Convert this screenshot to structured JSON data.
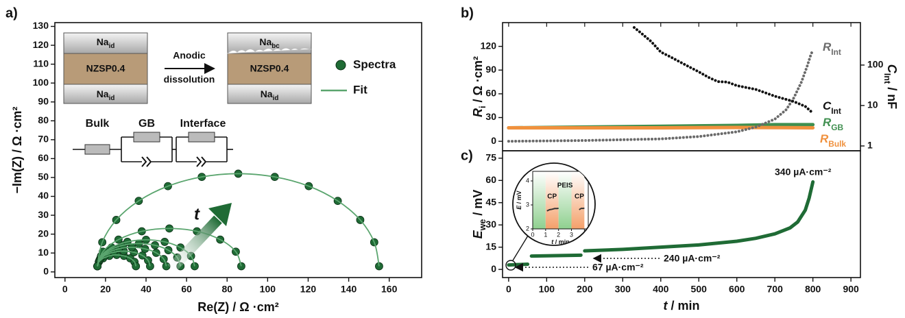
{
  "chart_data": [
    {
      "type": "scatter",
      "panel": "a)",
      "xlabel": "Re(Z) / Ω ·cm²",
      "ylabel": "−Im(Z) / Ω ·cm²",
      "xlim": [
        -5,
        176
      ],
      "ylim": [
        -3,
        132
      ],
      "xticks": [
        0,
        20,
        40,
        60,
        80,
        100,
        120,
        140,
        160
      ],
      "yticks": [
        0,
        10,
        20,
        30,
        40,
        50,
        60,
        70,
        80,
        90,
        100,
        110,
        120,
        130
      ],
      "series": [
        {
          "name": "Spectra",
          "color": "#1f6b35",
          "arcs": [
            {
              "x": [
                16,
                16.7,
                18.8,
                21.9,
                25.5,
                29.1,
                32.2,
                34.3,
                35
              ],
              "y": [
                3,
                5.3,
                7.2,
                8.5,
                9,
                8.5,
                7.2,
                5.3,
                3
              ]
            },
            {
              "x": [
                16,
                17.0,
                19.8,
                24.0,
                29,
                34.0,
                38.2,
                41.0,
                42
              ],
              "y": [
                3,
                6.1,
                8.7,
                10.4,
                11,
                10.4,
                8.7,
                6.1,
                3
              ]
            },
            {
              "x": [
                16,
                17.3,
                21.0,
                26.5,
                33,
                39.5,
                45.0,
                48.7,
                50
              ],
              "y": [
                3,
                6.8,
                10.1,
                12.2,
                13,
                12.2,
                10.1,
                6.8,
                3
              ]
            },
            {
              "x": [
                16,
                17.6,
                22.0,
                28.6,
                36.5,
                44.4,
                51.0,
                55.4,
                57
              ],
              "y": [
                3,
                7.6,
                11.5,
                14.1,
                15,
                14.1,
                11.5,
                7.6,
                3
              ]
            },
            {
              "x": [
                16,
                17.8,
                23.0,
                30.8,
                40,
                49.2,
                57.0,
                62.2,
                64
              ],
              "y": [
                3,
                8.4,
                12.9,
                15.9,
                17,
                15.9,
                12.9,
                8.4,
                3
              ]
            },
            {
              "x": [
                16,
                18.7,
                26.4,
                37.9,
                51.5,
                65.1,
                76.6,
                84.3,
                87
              ],
              "y": [
                3,
                10.7,
                17.1,
                21.5,
                23,
                21.5,
                17.1,
                10.7,
                3
              ]
            },
            {
              "x": [
                16,
                18.4,
                25.3,
                36.4,
                50.8,
                67.5,
                85.5,
                103.5,
                120.3,
                134.6,
                145.7,
                152.6,
                155
              ],
              "y": [
                3,
                15.7,
                27.5,
                37.6,
                45.4,
                50.3,
                52,
                50.3,
                45.4,
                37.6,
                27.5,
                15.7,
                3
              ]
            }
          ]
        },
        {
          "name": "Fit",
          "color": "#5aa56e"
        }
      ],
      "annotations": {
        "cell_before": [
          [
            "Na",
            {
              "sub": "id"
            }
          ],
          "NZSP0.4",
          [
            "Na",
            {
              "sub": "id"
            }
          ]
        ],
        "arrow_text": [
          "Anodic",
          "dissolution"
        ],
        "cell_after": [
          [
            "Na",
            {
              "sub": "bc"
            }
          ],
          "NZSP0.4",
          [
            "Na",
            {
              "sub": "id"
            }
          ]
        ],
        "circuit": [
          "Bulk",
          "GB",
          "Interface"
        ],
        "trend": "t"
      }
    },
    {
      "type": "line",
      "panel": "b)",
      "ylabel": [
        "R",
        {
          "sub": "i"
        },
        " / Ω ·cm²"
      ],
      "y2label": [
        "C",
        {
          "sub": "Int"
        },
        " / nF"
      ],
      "xlim": [
        -16,
        925
      ],
      "ylim": [
        -12,
        150
      ],
      "yticks": [
        0,
        30,
        60,
        90,
        120
      ],
      "y2lim": [
        0.76,
        1120
      ],
      "y2ticks": [
        1,
        10,
        100
      ],
      "y2log": true,
      "series": [
        {
          "name": [
            "R",
            {
              "sub": "Int"
            }
          ],
          "color": "#6a6a6a",
          "x": [
            0,
            100,
            200,
            300,
            400,
            500,
            600,
            650,
            700,
            730,
            750,
            770,
            785,
            795,
            800
          ],
          "values": [
            0,
            0.5,
            1,
            2,
            3,
            6,
            12,
            18,
            28,
            40,
            55,
            75,
            95,
            110,
            115
          ]
        },
        {
          "name": [
            "C",
            {
              "sub": "Int"
            }
          ],
          "color": "#111111",
          "axis": "y2",
          "x": [
            330,
            350,
            375,
            400,
            425,
            450,
            475,
            500,
            525,
            550,
            575,
            600,
            650,
            700,
            750,
            780,
            800
          ],
          "values": [
            850,
            600,
            380,
            210,
            160,
            120,
            90,
            68,
            50,
            39,
            38,
            31,
            25,
            17,
            12.5,
            9.5,
            6.5
          ]
        },
        {
          "name": [
            "R",
            {
              "sub": "GB"
            }
          ],
          "color": "#3f8f4f",
          "x": [
            0,
            200,
            400,
            600,
            700,
            800
          ],
          "values": [
            17,
            18,
            19,
            20,
            21,
            21
          ]
        },
        {
          "name": [
            "R",
            {
              "sub": "Bulk"
            }
          ],
          "color": "#f0913e",
          "x": [
            0,
            400,
            600,
            800
          ],
          "values": [
            17,
            17,
            17.5,
            17
          ]
        }
      ]
    },
    {
      "type": "line",
      "panel": "c)",
      "xlabel": [
        "t",
        " / min"
      ],
      "ylabel": [
        "E",
        {
          "sub": "we"
        },
        " / mV"
      ],
      "xlim": [
        -16,
        925
      ],
      "ylim": [
        -5.5,
        80
      ],
      "xticks": [
        0,
        100,
        200,
        300,
        400,
        500,
        600,
        700,
        800,
        900
      ],
      "yticks": [
        0,
        15,
        30,
        45,
        60,
        75
      ],
      "series": [
        {
          "color": "#1f6b35",
          "x": [
            0,
            10,
            20,
            30,
            40,
            50,
            55,
            60,
            100,
            150,
            190,
            195,
            200,
            300,
            400,
            500,
            600,
            650,
            700,
            740,
            760,
            780,
            790,
            800
          ],
          "values": [
            3,
            3.1,
            3.2,
            3.3,
            3.4,
            3.5,
            null,
            9,
            9.2,
            9.4,
            9.6,
            null,
            12.5,
            13.5,
            15,
            16.5,
            19,
            21,
            24,
            28,
            32,
            40,
            48,
            59
          ]
        }
      ],
      "annotations": [
        "67 µA·cm⁻²",
        "240 µA·cm⁻²",
        "340 µA·cm⁻²"
      ],
      "inset": {
        "xlabel": [
          "t",
          " / min"
        ],
        "ylabel": [
          "E",
          " / mV"
        ],
        "xlim": [
          0,
          4.3
        ],
        "ylim": [
          2,
          4.4
        ],
        "xticks": [
          0,
          1,
          2,
          3,
          4
        ],
        "yticks": [
          2,
          3,
          4
        ],
        "x": [
          1.1,
          1.3,
          1.5,
          1.7,
          1.9,
          2.0,
          2.1,
          3.6,
          3.7,
          3.8,
          3.9,
          4.0
        ],
        "values": [
          2.75,
          2.8,
          2.82,
          2.85,
          2.85,
          2.86,
          null,
          2.8,
          2.84,
          2.86,
          2.85,
          2.87
        ],
        "labels": [
          "CP",
          "PEIS",
          "CP"
        ]
      }
    }
  ]
}
